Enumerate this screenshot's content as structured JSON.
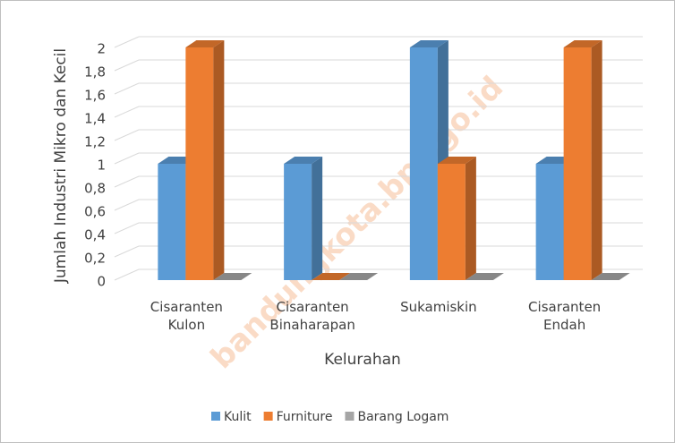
{
  "chart_data": {
    "type": "bar3d",
    "y_label": "Jumlah Industri Mikro dan Kecil",
    "x_label": "Kelurahan",
    "watermark": "bandungkota.bps.go.id",
    "categories": [
      "Cisaranten Kulon",
      "Cisaranten Binaharapan",
      "Sukamiskin",
      "Cisaranten Endah"
    ],
    "series": [
      {
        "name": "Kulit",
        "color": "#5b9bd5",
        "values": [
          1,
          1,
          2,
          1
        ]
      },
      {
        "name": "Furniture",
        "color": "#ed7d31",
        "values": [
          2,
          0,
          1,
          2
        ]
      },
      {
        "name": "Barang Logam",
        "color": "#a5a5a5",
        "values": [
          0,
          0,
          0,
          0
        ]
      }
    ],
    "ylim": [
      0,
      2
    ],
    "yticks": [
      0,
      {
        "value": 0.2,
        "label": "0,2"
      },
      {
        "value": 0.4,
        "label": "0,4"
      },
      {
        "value": 0.6,
        "label": "0,6"
      },
      {
        "value": 0.8,
        "label": "0,8"
      },
      1,
      {
        "value": 1.2,
        "label": "1,2"
      },
      {
        "value": 1.4,
        "label": "1,4"
      },
      {
        "value": 1.6,
        "label": "1,6"
      },
      {
        "value": 1.8,
        "label": "1,8"
      },
      2
    ],
    "grid": true
  }
}
